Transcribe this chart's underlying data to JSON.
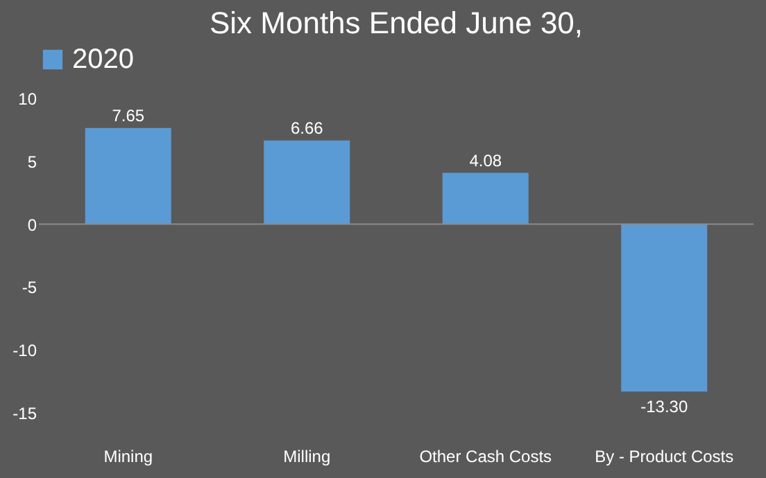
{
  "chart_data": {
    "type": "bar",
    "title": "Six Months Ended June 30,",
    "categories": [
      "Mining",
      "Milling",
      "Other Cash Costs",
      "By - Product Costs"
    ],
    "series": [
      {
        "name": "2020",
        "color": "#5b9bd5",
        "values": [
          7.65,
          6.66,
          4.08,
          -13.3
        ],
        "value_labels": [
          "7.65",
          "6.66",
          "4.08",
          "-13.30"
        ]
      }
    ],
    "ylim": [
      -15,
      10
    ],
    "yticks": [
      -15,
      -10,
      -5,
      0,
      5,
      10
    ],
    "legend": "top"
  }
}
